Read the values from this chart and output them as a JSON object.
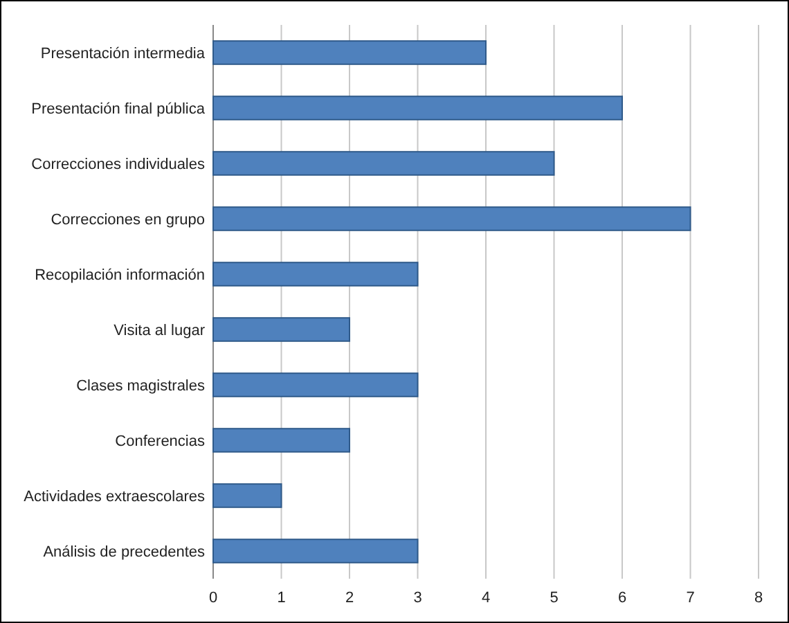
{
  "chart_data": {
    "type": "bar",
    "orientation": "horizontal",
    "categories": [
      "Presentación intermedia",
      "Presentación final pública",
      "Correcciones individuales",
      "Correcciones en grupo",
      "Recopilación información",
      "Visita al lugar",
      "Clases magistrales",
      "Conferencias",
      "Actividades extraescolares",
      "Análisis de precedentes"
    ],
    "values": [
      4,
      6,
      5,
      7,
      3,
      2,
      3,
      2,
      1,
      3
    ],
    "color": "#4f81bd",
    "xlim": [
      0,
      8
    ],
    "xticks": [
      0,
      1,
      2,
      3,
      4,
      5,
      6,
      7,
      8
    ],
    "grid": "x"
  }
}
